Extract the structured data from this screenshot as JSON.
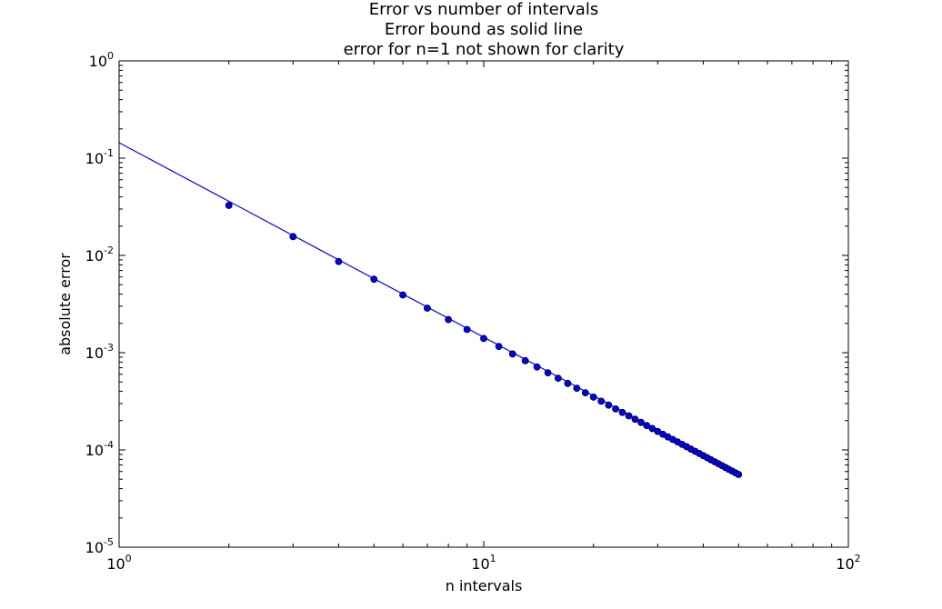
{
  "chart_data": {
    "type": "scatter",
    "title_lines": [
      "Error vs number of intervals",
      "Error bound as solid line",
      "error for n=1 not shown for clarity"
    ],
    "xlabel": "n intervals",
    "ylabel": "absolute error",
    "xscale": "log",
    "yscale": "log",
    "xlim": [
      1,
      100
    ],
    "ylim": [
      1e-05,
      1
    ],
    "x_ticks": [
      {
        "base": "10",
        "exp": "0",
        "value": 1
      },
      {
        "base": "10",
        "exp": "1",
        "value": 10
      },
      {
        "base": "10",
        "exp": "2",
        "value": 100
      }
    ],
    "y_ticks": [
      {
        "base": "10",
        "exp": "0",
        "value": 1
      },
      {
        "base": "10",
        "exp": "-1",
        "value": 0.1
      },
      {
        "base": "10",
        "exp": "-2",
        "value": 0.01
      },
      {
        "base": "10",
        "exp": "-3",
        "value": 0.001
      },
      {
        "base": "10",
        "exp": "-4",
        "value": 0.0001
      },
      {
        "base": "10",
        "exp": "-5",
        "value": 1e-05
      }
    ],
    "series": [
      {
        "name": "error bound",
        "kind": "line",
        "color": "#0000ff",
        "x": [
          1,
          50
        ],
        "y": [
          0.1442,
          5.77e-05
        ]
      },
      {
        "name": "absolute error",
        "kind": "scatter",
        "color": "#0000ff",
        "edge_color": "#000000",
        "x": [
          2,
          3,
          4,
          5,
          6,
          7,
          8,
          9,
          10,
          11,
          12,
          13,
          14,
          15,
          16,
          17,
          18,
          19,
          20,
          21,
          22,
          23,
          24,
          25,
          26,
          27,
          28,
          29,
          30,
          31,
          32,
          33,
          34,
          35,
          36,
          37,
          38,
          39,
          40,
          41,
          42,
          43,
          44,
          45,
          46,
          47,
          48,
          49,
          50
        ],
        "y": [
          0.0327,
          0.0156,
          0.00865,
          0.00569,
          0.00392,
          0.00287,
          0.00219,
          0.00173,
          0.0014,
          0.00116,
          0.00097,
          0.000827,
          0.000712,
          0.000621,
          0.000546,
          0.000483,
          0.000431,
          0.000387,
          0.000349,
          0.000317,
          0.000289,
          0.000264,
          0.000243,
          0.000224,
          0.000207,
          0.000192,
          0.000178,
          0.000166,
          0.000155,
          0.000145,
          0.000136,
          0.000128,
          0.000121,
          0.000114,
          0.000108,
          0.000102,
          9.69e-05,
          9.2e-05,
          8.74e-05,
          8.32e-05,
          7.92e-05,
          7.56e-05,
          7.22e-05,
          6.9e-05,
          6.6e-05,
          6.32e-05,
          6.06e-05,
          5.82e-05,
          5.59e-05
        ]
      }
    ]
  }
}
